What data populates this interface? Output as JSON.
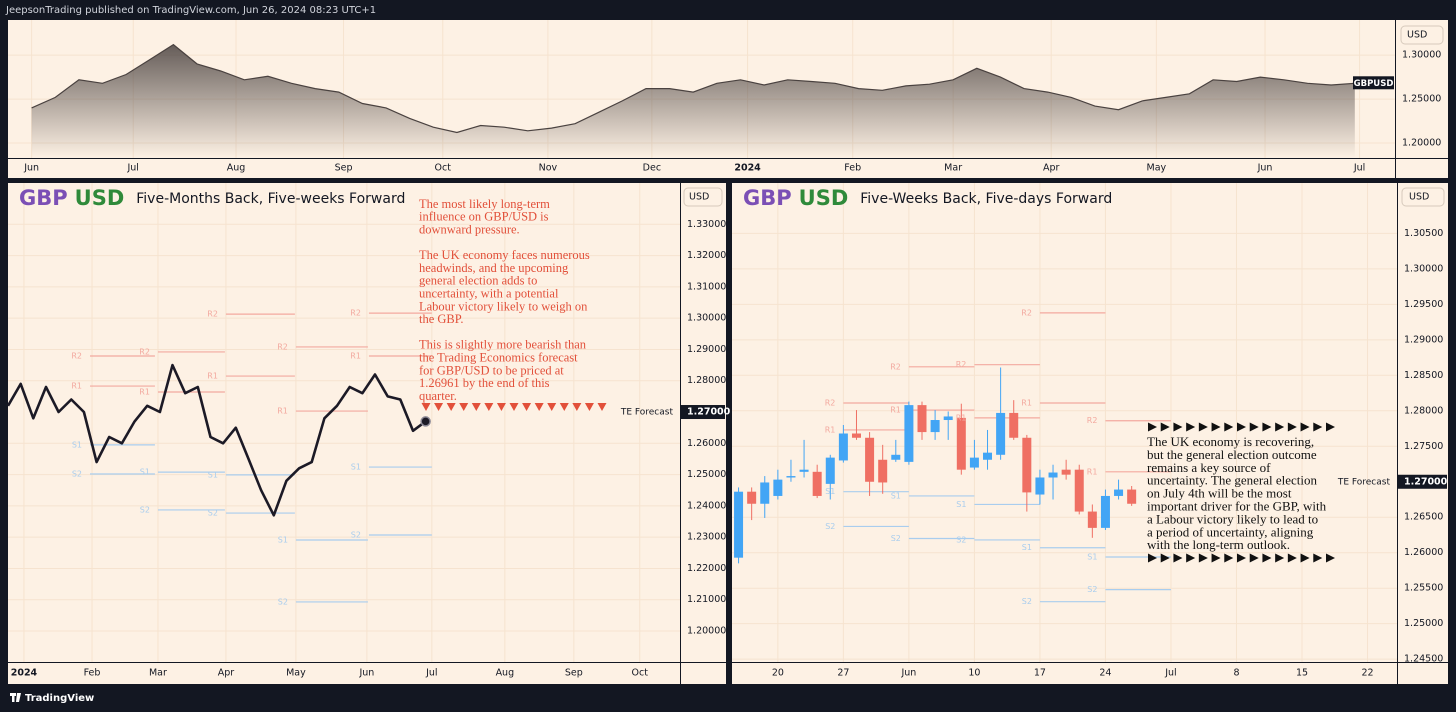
{
  "header": {
    "text": "JeepsonTrading published on TradingView.com, Jun 26, 2024 08:23 UTC+1"
  },
  "footer": {
    "logo": "TradingView"
  },
  "chart_data": [
    {
      "type": "area",
      "currency": "USD",
      "symbol": "GBPUSD",
      "color": "#4a4240",
      "grid": true,
      "grid_color": "#f6e3cf",
      "values": [
        1.24,
        1.252,
        1.272,
        1.268,
        1.278,
        1.295,
        1.312,
        1.29,
        1.282,
        1.272,
        1.276,
        1.268,
        1.262,
        1.258,
        1.245,
        1.24,
        1.228,
        1.218,
        1.212,
        1.22,
        1.218,
        1.214,
        1.217,
        1.222,
        1.235,
        1.248,
        1.262,
        1.262,
        1.258,
        1.268,
        1.272,
        1.266,
        1.272,
        1.27,
        1.268,
        1.262,
        1.26,
        1.265,
        1.267,
        1.272,
        1.285,
        1.275,
        1.262,
        1.258,
        1.252,
        1.242,
        1.238,
        1.248,
        1.252,
        1.256,
        1.272,
        1.27,
        1.275,
        1.272,
        1.268,
        1.266,
        1.268
      ],
      "xlim": [
        -1,
        57.7
      ],
      "xticks": [
        {
          "value": 0,
          "label": "Jun"
        },
        {
          "value": 4.3,
          "label": "Jul"
        },
        {
          "value": 8.65,
          "label": "Aug"
        },
        {
          "value": 13.2,
          "label": "Sep"
        },
        {
          "value": 17.4,
          "label": "Oct"
        },
        {
          "value": 21.85,
          "label": "Nov"
        },
        {
          "value": 26.25,
          "label": "Dec"
        },
        {
          "value": 30.3,
          "label": "2024"
        },
        {
          "value": 34.75,
          "label": "Feb"
        },
        {
          "value": 39,
          "label": "Mar"
        },
        {
          "value": 43.15,
          "label": "Apr"
        },
        {
          "value": 47.6,
          "label": "May"
        },
        {
          "value": 52.2,
          "label": "Jun"
        },
        {
          "value": 56.2,
          "label": "Jul"
        }
      ],
      "ylim": [
        1.183,
        1.34
      ],
      "yticks": [
        {
          "value": 1.3,
          "label": "1.30000"
        },
        {
          "value": 1.25,
          "label": "1.25000"
        },
        {
          "value": 1.2,
          "label": "1.20000"
        }
      ]
    },
    {
      "type": "line",
      "currency": "USD",
      "color": "#1c1a26",
      "grid": true,
      "grid_color": "#f6e3cf",
      "title": {
        "base": "GBP",
        "quote": "USD",
        "text": "Five-Months Back, Five-weeks Forward",
        "base_color": "#7b4fb5",
        "quote_color": "#2f8a3a"
      },
      "values": [
        1.272,
        1.279,
        1.268,
        1.278,
        1.27,
        1.274,
        1.27,
        1.254,
        1.262,
        1.26,
        1.267,
        1.272,
        1.27,
        1.285,
        1.276,
        1.278,
        1.262,
        1.26,
        1.265,
        1.255,
        1.245,
        1.237,
        1.248,
        1.252,
        1.254,
        1.268,
        1.272,
        1.278,
        1.276,
        1.282,
        1.275,
        1.274,
        1.264,
        1.267
      ],
      "xlim": [
        0,
        53.1
      ],
      "xticks": [
        {
          "value": 1.26,
          "label": "2024"
        },
        {
          "value": 6.64,
          "label": "Feb"
        },
        {
          "value": 11.85,
          "label": "Mar"
        },
        {
          "value": 17.22,
          "label": "Apr"
        },
        {
          "value": 22.75,
          "label": "May"
        },
        {
          "value": 28.36,
          "label": "Jun"
        },
        {
          "value": 33.49,
          "label": "Jul"
        },
        {
          "value": 39.26,
          "label": "Aug"
        },
        {
          "value": 44.71,
          "label": "Sep"
        },
        {
          "value": 49.92,
          "label": "Oct"
        }
      ],
      "ylim": [
        1.1901,
        1.3432
      ],
      "yticks": [
        {
          "value": 1.33,
          "label": "1.33000"
        },
        {
          "value": 1.32,
          "label": "1.32000"
        },
        {
          "value": 1.31,
          "label": "1.31000"
        },
        {
          "value": 1.3,
          "label": "1.30000"
        },
        {
          "value": 1.29,
          "label": "1.29000"
        },
        {
          "value": 1.28,
          "label": "1.28000"
        },
        {
          "value": 1.26,
          "label": "1.26000"
        },
        {
          "value": 1.25,
          "label": "1.25000"
        },
        {
          "value": 1.24,
          "label": "1.24000"
        },
        {
          "value": 1.23,
          "label": "1.23000"
        },
        {
          "value": 1.22,
          "label": "1.22000"
        },
        {
          "value": 1.21,
          "label": "1.21000"
        },
        {
          "value": 1.2,
          "label": "1.20000"
        }
      ],
      "pivots": {
        "names": [
          "R2",
          "R1",
          "S1",
          "S2"
        ],
        "colors": [
          "#f3a99f",
          "#f3a99f",
          "#a9cdee",
          "#a9cdee"
        ],
        "periods": [
          {
            "start": 6.48,
            "end": 11.61,
            "values": [
              1.2879,
              1.2783,
              1.2595,
              1.2502
            ]
          },
          {
            "start": 11.85,
            "end": 17.14,
            "values": [
              1.2892,
              1.2764,
              1.2508,
              1.2387
            ]
          },
          {
            "start": 17.22,
            "end": 22.67,
            "values": [
              1.3013,
              1.2815,
              1.2499,
              1.2377
            ]
          },
          {
            "start": 22.75,
            "end": 28.44,
            "values": [
              1.2908,
              1.2703,
              1.2291,
              1.2093
            ]
          },
          {
            "start": 28.52,
            "end": 33.49,
            "values": [
              1.3016,
              1.2879,
              1.2524,
              1.2307
            ]
          }
        ]
      },
      "forecast": {
        "label": "TE Forecast",
        "value": 1.27,
        "value_label": "1.27000"
      },
      "annotation": {
        "color": "#e2503a",
        "marker": "down",
        "paragraphs": [
          [
            "The most likely long-term",
            "influence on GBP/USD is",
            "downward pressure."
          ],
          [
            "The UK economy faces numerous",
            "headwinds, and the upcoming",
            "general election adds to",
            "uncertainty, with a potential",
            "Labour victory likely to weigh on",
            "the GBP."
          ],
          [
            "This is slightly more bearish than",
            "the Trading Economics forecast",
            "for GBP/USD to be priced at",
            "1.26961 by the end of this",
            "quarter."
          ]
        ]
      }
    },
    {
      "type": "candlestick",
      "currency": "USD",
      "up_color": "#42a5f5",
      "down_color": "#ef6f63",
      "grid": true,
      "grid_color": "#f6e3cf",
      "title": {
        "base": "GBP",
        "quote": "USD",
        "text": "Five-Weeks Back, Five-days Forward",
        "base_color": "#7b4fb5",
        "quote_color": "#2f8a3a"
      },
      "x": [
        -3,
        -2,
        -1,
        0,
        1,
        2,
        3,
        4,
        5,
        6,
        7,
        8,
        9,
        10,
        11,
        12,
        13,
        14,
        15,
        16,
        17,
        18,
        19,
        20,
        21,
        22,
        23,
        24,
        25,
        26,
        27
      ],
      "open": [
        1.2593,
        1.2686,
        1.2669,
        1.268,
        1.2706,
        1.2714,
        1.2714,
        1.2697,
        1.273,
        1.2768,
        1.2762,
        1.2731,
        1.2731,
        1.2728,
        1.2808,
        1.277,
        1.2787,
        1.279,
        1.272,
        1.2731,
        1.2738,
        1.2797,
        1.2762,
        1.2682,
        1.2706,
        1.2717,
        1.2717,
        1.2658,
        1.2635,
        1.268,
        1.2689
      ],
      "high": [
        1.2692,
        1.2692,
        1.2708,
        1.2717,
        1.2731,
        1.2759,
        1.2724,
        1.2738,
        1.278,
        1.2801,
        1.277,
        1.2752,
        1.2759,
        1.2813,
        1.2813,
        1.2801,
        1.2799,
        1.281,
        1.2759,
        1.2773,
        1.2861,
        1.2815,
        1.2766,
        1.2717,
        1.2724,
        1.2731,
        1.2724,
        1.2668,
        1.2689,
        1.2703,
        1.2694
      ],
      "low": [
        1.2585,
        1.2646,
        1.2649,
        1.2675,
        1.27,
        1.2706,
        1.2677,
        1.2675,
        1.2727,
        1.2759,
        1.268,
        1.2683,
        1.2728,
        1.2724,
        1.2759,
        1.2759,
        1.2759,
        1.271,
        1.2717,
        1.2717,
        1.2731,
        1.2759,
        1.2658,
        1.2668,
        1.2675,
        1.2703,
        1.2654,
        1.2621,
        1.2632,
        1.2675,
        1.2666
      ],
      "close": [
        1.2686,
        1.2669,
        1.2699,
        1.2703,
        1.2708,
        1.2717,
        1.268,
        1.2734,
        1.2768,
        1.2762,
        1.27,
        1.2699,
        1.2738,
        1.2808,
        1.277,
        1.2787,
        1.2792,
        1.2717,
        1.2734,
        1.2741,
        1.2797,
        1.2762,
        1.2685,
        1.2706,
        1.2713,
        1.271,
        1.2658,
        1.2635,
        1.268,
        1.2689,
        1.2669
      ],
      "xlim": [
        -3.5,
        47.25
      ],
      "xticks": [
        {
          "value": 0,
          "label": "20"
        },
        {
          "value": 5,
          "label": "27"
        },
        {
          "value": 10,
          "label": "Jun"
        },
        {
          "value": 15,
          "label": "10"
        },
        {
          "value": 20,
          "label": "17"
        },
        {
          "value": 25,
          "label": "24"
        },
        {
          "value": 30,
          "label": "Jul"
        },
        {
          "value": 35,
          "label": "8"
        },
        {
          "value": 40,
          "label": "15"
        },
        {
          "value": 45,
          "label": "22"
        }
      ],
      "ylim": [
        1.2446,
        1.3121
      ],
      "yticks": [
        {
          "value": 1.305,
          "label": "1.30500"
        },
        {
          "value": 1.3,
          "label": "1.30000"
        },
        {
          "value": 1.295,
          "label": "1.29500"
        },
        {
          "value": 1.29,
          "label": "1.29000"
        },
        {
          "value": 1.285,
          "label": "1.28500"
        },
        {
          "value": 1.28,
          "label": "1.28000"
        },
        {
          "value": 1.275,
          "label": "1.27500"
        },
        {
          "value": 1.265,
          "label": "1.26500"
        },
        {
          "value": 1.26,
          "label": "1.26000"
        },
        {
          "value": 1.255,
          "label": "1.25500"
        },
        {
          "value": 1.25,
          "label": "1.25000"
        },
        {
          "value": 1.245,
          "label": "1.24500"
        }
      ],
      "pivots": {
        "names": [
          "R2",
          "R1",
          "S1",
          "S2"
        ],
        "colors": [
          "#f3a99f",
          "#f3a99f",
          "#a9cdee",
          "#a9cdee"
        ],
        "periods": [
          {
            "start": 5,
            "end": 10,
            "values": [
              1.2811,
              1.2773,
              1.2686,
              1.2637
            ]
          },
          {
            "start": 10,
            "end": 15,
            "values": [
              1.2862,
              1.2801,
              1.268,
              1.262
            ]
          },
          {
            "start": 15,
            "end": 20,
            "values": [
              1.2865,
              1.279,
              1.2668,
              1.2618
            ]
          },
          {
            "start": 20,
            "end": 25,
            "values": [
              1.2938,
              1.2811,
              1.2607,
              1.2531
            ]
          },
          {
            "start": 25,
            "end": 30,
            "values": [
              1.2786,
              1.2714,
              1.2594,
              1.2548
            ]
          }
        ]
      },
      "forecast": {
        "label": "TE Forecast",
        "value": 1.27,
        "value_label": "1.27000"
      },
      "annotation": {
        "color": "#111111",
        "marker": "right",
        "paragraphs": [
          [
            "The UK economy is recovering,",
            "but the general election outcome",
            "remains a key source of",
            "uncertainty. The general election",
            "on July 4th will be the most",
            "important driver for the GBP, with",
            "a Labour victory likely to lead to",
            "a period of uncertainty, aligning",
            "with the long-term outlook."
          ]
        ]
      }
    }
  ]
}
